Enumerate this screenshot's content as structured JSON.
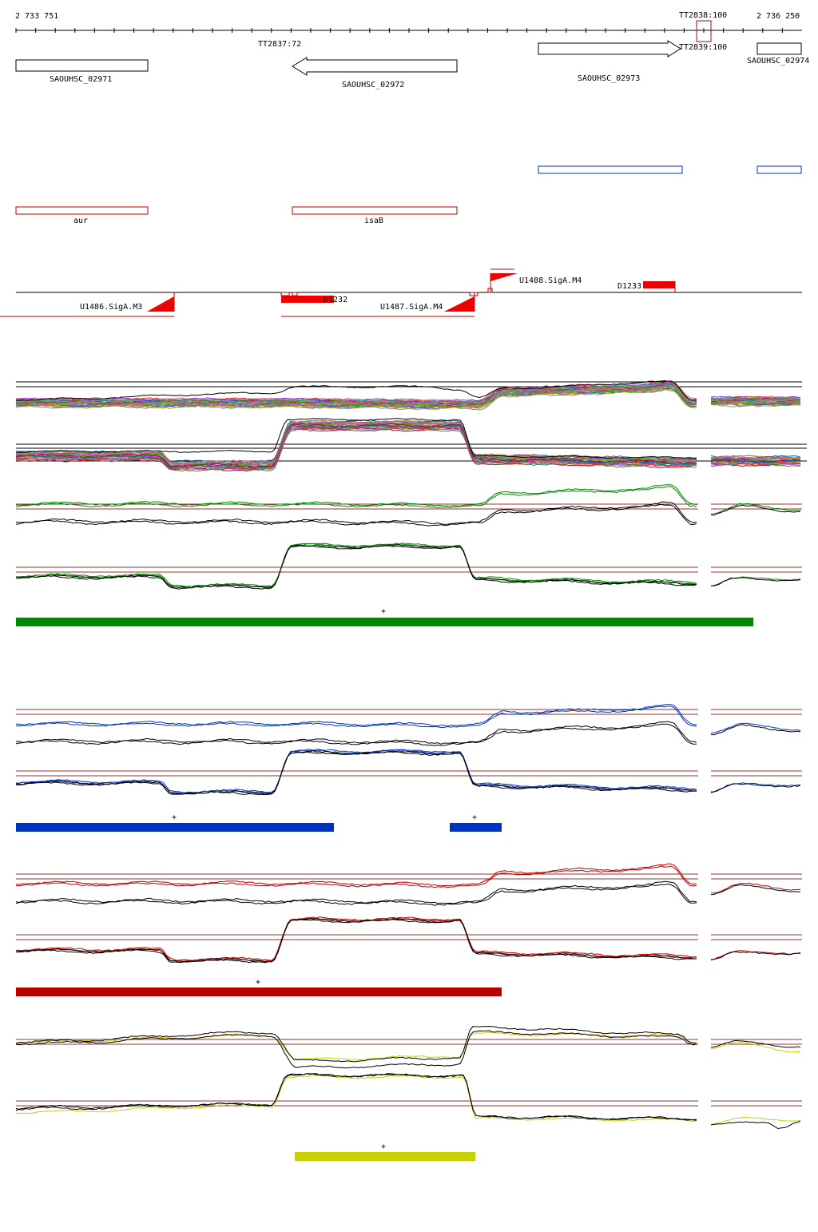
{
  "coords": {
    "start": "2 733 751",
    "end": "2 736 250"
  },
  "terminators": [
    "TT2837:72",
    "TT2838:100",
    "TT2839:100"
  ],
  "genes": [
    "SAOUHSC_02971",
    "SAOUHSC_02972",
    "SAOUHSC_02973",
    "SAOUHSC_02974"
  ],
  "gene_names": [
    "aur",
    "isaB"
  ],
  "features": [
    "U1486.SigA.M3",
    "U1487.SigA.M4",
    "U1488.SigA.M4",
    "D1232",
    "D1233"
  ],
  "plus_marks": [
    "+",
    "+",
    "+",
    "+",
    "+"
  ],
  "colors": {
    "green": "#008800",
    "blue": "#0033bb",
    "red": "#bb0000",
    "yellow": "#c8d000",
    "guide": "#993333"
  }
}
